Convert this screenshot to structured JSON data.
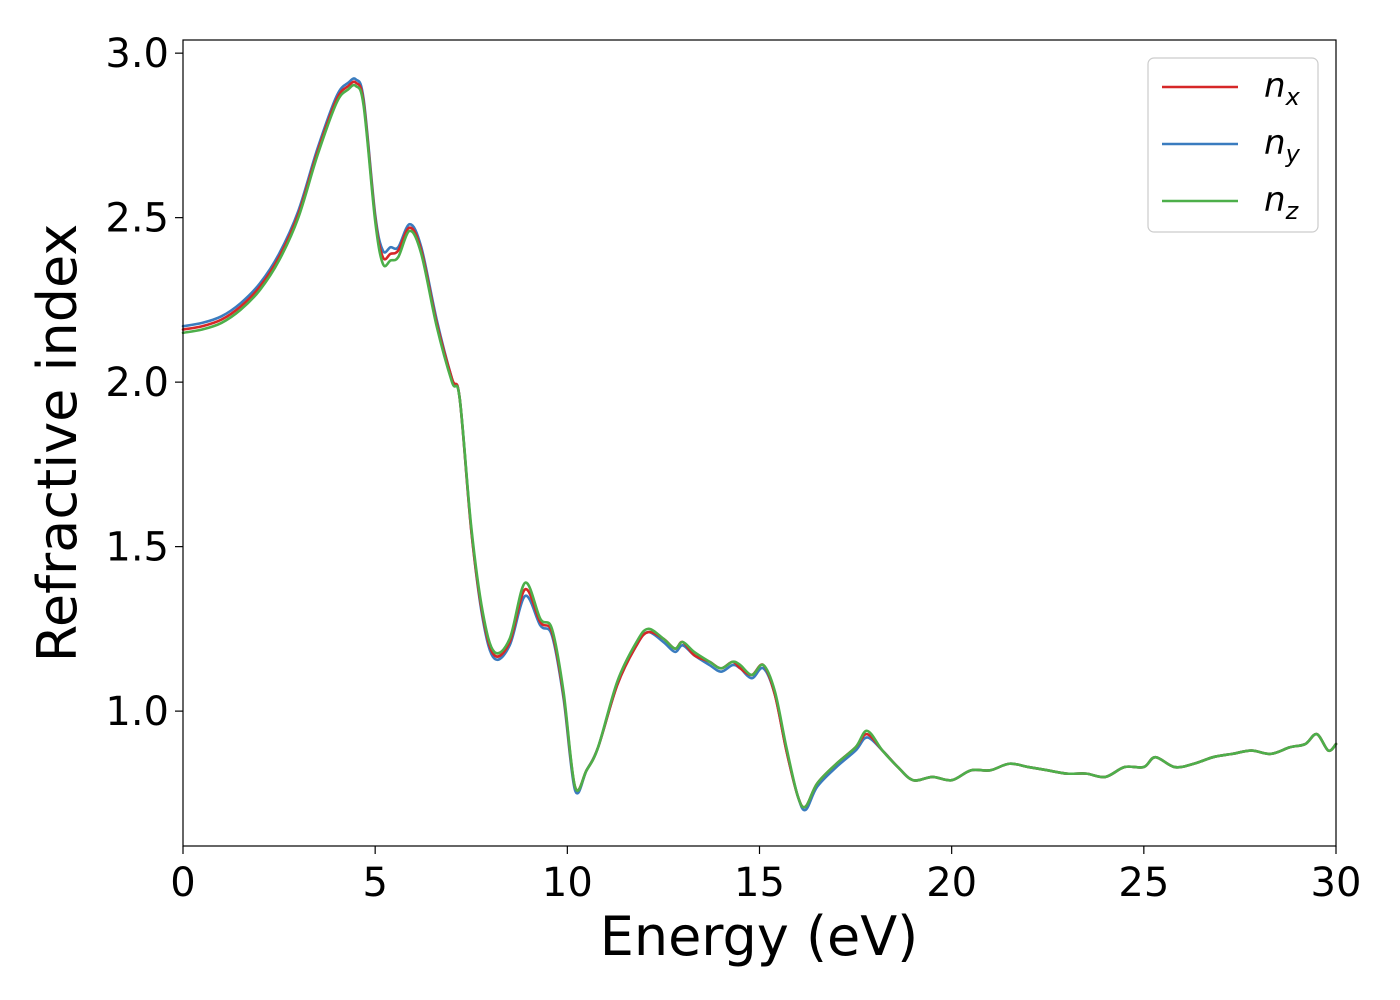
{
  "chart_data": {
    "type": "line",
    "xlabel": "Energy (eV)",
    "ylabel": "Refractive index",
    "xlim": [
      0,
      30
    ],
    "ylim": [
      0.59,
      3.04
    ],
    "xticks": [
      0,
      5,
      10,
      15,
      20,
      25,
      30
    ],
    "yticks": [
      1.0,
      1.5,
      2.0,
      2.5,
      3.0
    ],
    "xtick_labels": [
      "0",
      "5",
      "10",
      "15",
      "20",
      "25",
      "30"
    ],
    "ytick_labels": [
      "1.0",
      "1.5",
      "2.0",
      "2.5",
      "3.0"
    ],
    "grid": false,
    "legend_position": "top-right",
    "x": [
      0,
      0.5,
      1.0,
      1.5,
      2.0,
      2.5,
      3.0,
      3.5,
      4.0,
      4.3,
      4.5,
      4.7,
      5.0,
      5.2,
      5.4,
      5.6,
      5.9,
      6.2,
      6.6,
      7.0,
      7.2,
      7.5,
      7.8,
      8.1,
      8.5,
      8.9,
      9.3,
      9.6,
      9.9,
      10.2,
      10.5,
      10.8,
      11.3,
      11.8,
      12.1,
      12.5,
      12.8,
      13.0,
      13.3,
      13.7,
      14.0,
      14.3,
      14.5,
      14.8,
      15.1,
      15.4,
      15.7,
      16.0,
      16.2,
      16.5,
      17.0,
      17.5,
      17.8,
      18.2,
      18.6,
      19.0,
      19.5,
      20.0,
      20.5,
      21.0,
      21.5,
      22.0,
      22.5,
      23.0,
      23.5,
      24.0,
      24.5,
      25.0,
      25.3,
      25.8,
      26.3,
      26.8,
      27.3,
      27.8,
      28.3,
      28.8,
      29.2,
      29.5,
      29.8,
      30.0
    ],
    "series": [
      {
        "name": "n_x",
        "label_base": "n",
        "label_sub": "x",
        "color": "#d62728",
        "y": [
          2.16,
          2.17,
          2.19,
          2.23,
          2.29,
          2.38,
          2.51,
          2.7,
          2.86,
          2.9,
          2.91,
          2.85,
          2.5,
          2.38,
          2.39,
          2.4,
          2.47,
          2.4,
          2.18,
          2.01,
          1.95,
          1.55,
          1.29,
          1.17,
          1.21,
          1.37,
          1.27,
          1.24,
          1.05,
          0.77,
          0.82,
          0.89,
          1.08,
          1.2,
          1.24,
          1.22,
          1.19,
          1.21,
          1.17,
          1.15,
          1.13,
          1.15,
          1.13,
          1.11,
          1.14,
          1.05,
          0.88,
          0.74,
          0.71,
          0.78,
          0.84,
          0.89,
          0.93,
          0.88,
          0.83,
          0.79,
          0.8,
          0.79,
          0.82,
          0.82,
          0.84,
          0.83,
          0.82,
          0.81,
          0.81,
          0.8,
          0.83,
          0.83,
          0.86,
          0.83,
          0.84,
          0.86,
          0.87,
          0.88,
          0.87,
          0.89,
          0.9,
          0.93,
          0.88,
          0.9
        ]
      },
      {
        "name": "n_y",
        "label_base": "n",
        "label_sub": "y",
        "color": "#3a7cbf",
        "y": [
          2.17,
          2.18,
          2.2,
          2.24,
          2.3,
          2.39,
          2.52,
          2.71,
          2.87,
          2.91,
          2.92,
          2.86,
          2.51,
          2.4,
          2.41,
          2.41,
          2.48,
          2.41,
          2.19,
          2.01,
          1.95,
          1.55,
          1.28,
          1.16,
          1.2,
          1.35,
          1.26,
          1.23,
          1.04,
          0.76,
          0.82,
          0.89,
          1.08,
          1.2,
          1.24,
          1.21,
          1.18,
          1.2,
          1.17,
          1.14,
          1.12,
          1.14,
          1.13,
          1.1,
          1.13,
          1.05,
          0.88,
          0.74,
          0.7,
          0.77,
          0.83,
          0.88,
          0.92,
          0.88,
          0.83,
          0.79,
          0.8,
          0.79,
          0.82,
          0.82,
          0.84,
          0.83,
          0.82,
          0.81,
          0.81,
          0.8,
          0.83,
          0.83,
          0.86,
          0.83,
          0.84,
          0.86,
          0.87,
          0.88,
          0.87,
          0.89,
          0.9,
          0.93,
          0.88,
          0.9
        ]
      },
      {
        "name": "n_z",
        "label_base": "n",
        "label_sub": "z",
        "color": "#4daf4a",
        "y": [
          2.15,
          2.16,
          2.18,
          2.22,
          2.28,
          2.37,
          2.5,
          2.69,
          2.85,
          2.89,
          2.9,
          2.84,
          2.49,
          2.36,
          2.37,
          2.38,
          2.46,
          2.39,
          2.17,
          2.0,
          1.95,
          1.56,
          1.3,
          1.18,
          1.22,
          1.39,
          1.28,
          1.25,
          1.06,
          0.77,
          0.82,
          0.89,
          1.09,
          1.21,
          1.25,
          1.22,
          1.19,
          1.21,
          1.18,
          1.15,
          1.13,
          1.15,
          1.14,
          1.11,
          1.14,
          1.06,
          0.89,
          0.74,
          0.71,
          0.78,
          0.84,
          0.89,
          0.94,
          0.88,
          0.83,
          0.79,
          0.8,
          0.79,
          0.82,
          0.82,
          0.84,
          0.83,
          0.82,
          0.81,
          0.81,
          0.8,
          0.83,
          0.83,
          0.86,
          0.83,
          0.84,
          0.86,
          0.87,
          0.88,
          0.87,
          0.89,
          0.9,
          0.93,
          0.88,
          0.9
        ]
      }
    ]
  }
}
